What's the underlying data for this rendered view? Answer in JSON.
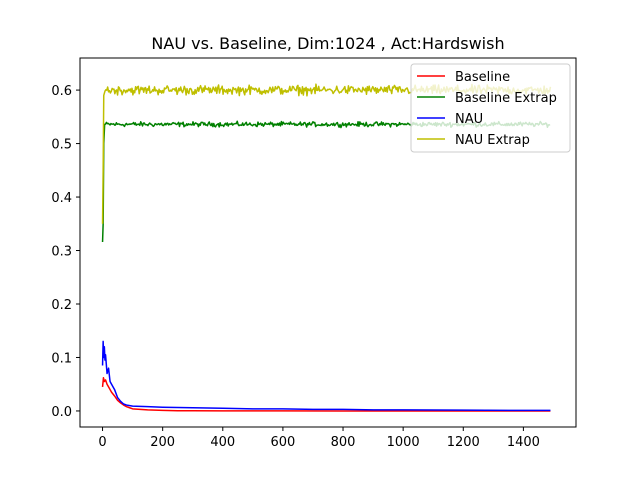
{
  "chart_data": {
    "type": "line",
    "title": "NAU vs. Baseline, Dim:1024 , Act:Hardswish",
    "xlabel": "",
    "ylabel": "",
    "xlim": [
      -75,
      1575
    ],
    "ylim": [
      -0.03,
      0.66
    ],
    "xticks": [
      0,
      200,
      400,
      600,
      800,
      1000,
      1200,
      1400
    ],
    "yticks": [
      0.0,
      0.1,
      0.2,
      0.3,
      0.4,
      0.5,
      0.6
    ],
    "xtick_labels": [
      "0",
      "200",
      "400",
      "600",
      "800",
      "1000",
      "1200",
      "1400"
    ],
    "ytick_labels": [
      "0.0",
      "0.1",
      "0.2",
      "0.3",
      "0.4",
      "0.5",
      "0.6"
    ],
    "legend_position": "top-right",
    "grid": false,
    "series": [
      {
        "name": "Baseline",
        "color": "#ff0000",
        "x": [
          0,
          3,
          6,
          10,
          15,
          20,
          25,
          30,
          40,
          50,
          60,
          70,
          80,
          90,
          100,
          125,
          150,
          200,
          250,
          300,
          400,
          500,
          600,
          800,
          1000,
          1200,
          1400,
          1490
        ],
        "y": [
          0.045,
          0.062,
          0.055,
          0.058,
          0.05,
          0.045,
          0.04,
          0.035,
          0.028,
          0.02,
          0.015,
          0.011,
          0.008,
          0.006,
          0.004,
          0.003,
          0.002,
          0.001,
          0.0005,
          0.0003,
          0.0002,
          0.0001,
          0.0001,
          0.0,
          0.0,
          0.0,
          0.0,
          0.0
        ]
      },
      {
        "name": "Baseline Extrap",
        "color": "#008000",
        "baseline": 0.536,
        "noise": 0.004,
        "start": [
          [
            0,
            0.316
          ],
          [
            2,
            0.35
          ],
          [
            4,
            0.5
          ],
          [
            7,
            0.536
          ]
        ]
      },
      {
        "name": "NAU",
        "color": "#0000ff",
        "x": [
          0,
          2,
          4,
          6,
          8,
          10,
          15,
          20,
          25,
          30,
          40,
          50,
          60,
          70,
          80,
          100,
          150,
          200,
          300,
          400,
          500,
          600,
          700,
          800,
          900,
          1000,
          1200,
          1400,
          1490
        ],
        "y": [
          0.085,
          0.13,
          0.1,
          0.12,
          0.095,
          0.105,
          0.07,
          0.08,
          0.055,
          0.05,
          0.04,
          0.025,
          0.018,
          0.013,
          0.011,
          0.009,
          0.008,
          0.007,
          0.006,
          0.005,
          0.004,
          0.004,
          0.003,
          0.003,
          0.002,
          0.002,
          0.0015,
          0.001,
          0.001
        ]
      },
      {
        "name": "NAU Extrap",
        "color": "#bfbf00",
        "baseline": 0.6,
        "noise": 0.008,
        "start": [
          [
            0,
            0.35
          ],
          [
            2,
            0.45
          ],
          [
            4,
            0.59
          ],
          [
            8,
            0.598
          ]
        ]
      }
    ]
  }
}
